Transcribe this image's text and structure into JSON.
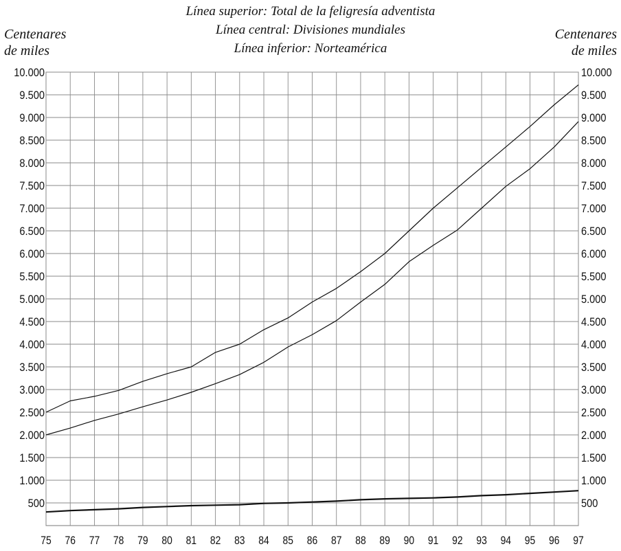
{
  "chart_data": {
    "type": "line",
    "legend_lines": [
      "Línea superior: Total de la feligresía adventista",
      "Línea central: Divisiones mundiales",
      "Línea inferior: Norteamérica"
    ],
    "ylabel_left": [
      "Centenares",
      "de miles"
    ],
    "ylabel_right": [
      "Centenares",
      "de miles"
    ],
    "x": [
      "75",
      "76",
      "77",
      "78",
      "79",
      "80",
      "81",
      "82",
      "83",
      "84",
      "85",
      "86",
      "87",
      "88",
      "89",
      "90",
      "91",
      "92",
      "93",
      "94",
      "95",
      "96",
      "97"
    ],
    "y_ticks": [
      "500",
      "1.000",
      "1.500",
      "2.000",
      "2.500",
      "3.000",
      "3.500",
      "4.000",
      "4.500",
      "5.000",
      "5.500",
      "6.000",
      "6.500",
      "7.000",
      "7.500",
      "8.000",
      "8.500",
      "9.000",
      "9.500",
      "10.000"
    ],
    "ylim": [
      0,
      10000
    ],
    "grid": true,
    "series": [
      {
        "values": [
          2500,
          2750,
          2850,
          2980,
          3180,
          3350,
          3500,
          3820,
          4000,
          4320,
          4580,
          4930,
          5230,
          5600,
          6000,
          6500,
          7000,
          7450,
          7900,
          8350,
          8800,
          9280,
          9720
        ]
      },
      {
        "values": [
          2000,
          2150,
          2320,
          2460,
          2620,
          2770,
          2940,
          3130,
          3330,
          3600,
          3940,
          4210,
          4520,
          4930,
          5320,
          5820,
          6180,
          6520,
          7000,
          7480,
          7870,
          8350,
          8910
        ]
      },
      {
        "values": [
          300,
          330,
          350,
          370,
          400,
          420,
          440,
          450,
          460,
          490,
          500,
          520,
          540,
          570,
          590,
          600,
          610,
          630,
          660,
          680,
          710,
          740,
          770
        ]
      }
    ]
  }
}
